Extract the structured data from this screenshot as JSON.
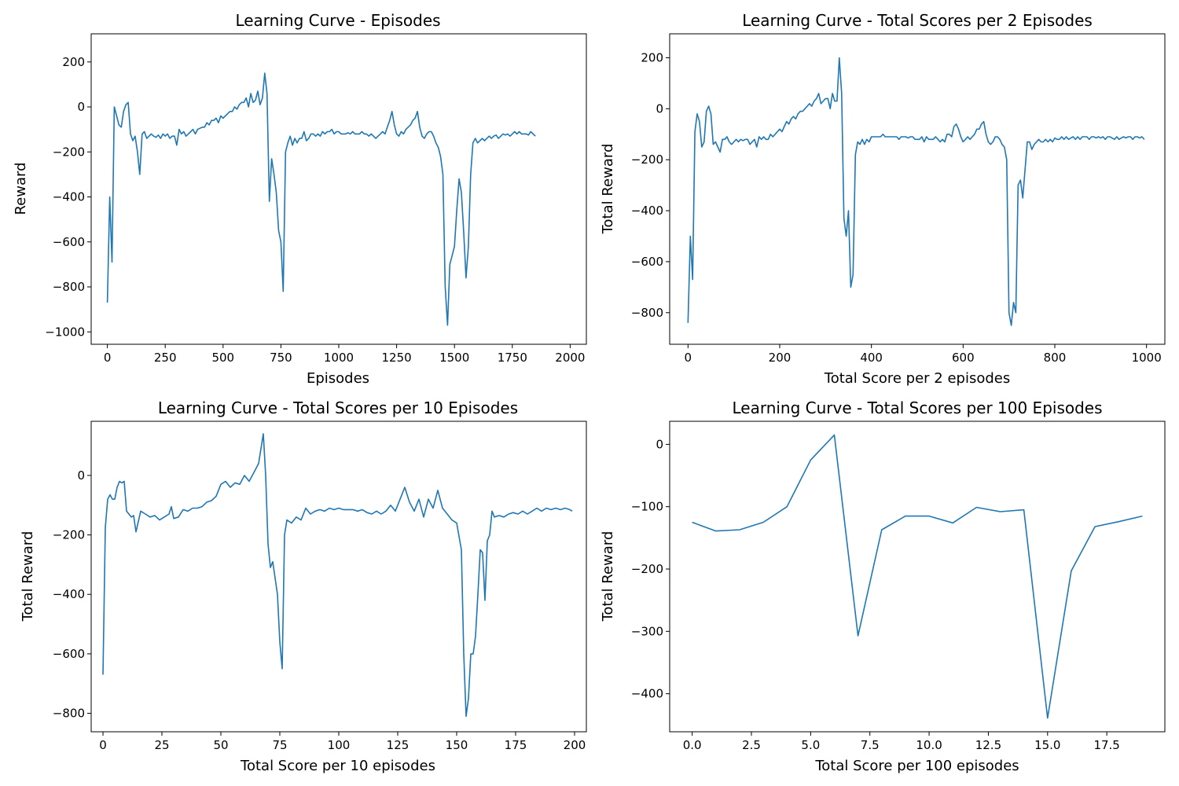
{
  "colors": {
    "series": "#1f77b4",
    "axes": "#000000",
    "background": "#ffffff"
  },
  "chart_data": [
    {
      "type": "line",
      "title": "Learning Curve - Episodes",
      "xlabel": "Episodes",
      "ylabel": "Reward",
      "xlim": [
        -70,
        2070
      ],
      "ylim": [
        -1055,
        325
      ],
      "xticks": [
        0,
        250,
        500,
        750,
        1000,
        1250,
        1500,
        1750,
        2000
      ],
      "xtick_labels": [
        "0",
        "250",
        "500",
        "750",
        "1000",
        "1250",
        "1500",
        "1750",
        "2000"
      ],
      "yticks": [
        -1000,
        -800,
        -600,
        -400,
        -200,
        0,
        200
      ],
      "ytick_labels": [
        "−1000",
        "−800",
        "−600",
        "−400",
        "−200",
        "0",
        "200"
      ],
      "grid": false,
      "legend": "none",
      "x_step": 10,
      "series": [
        {
          "values": [
            -870,
            -400,
            -690,
            0,
            -40,
            -80,
            -90,
            -20,
            10,
            20,
            -120,
            -150,
            -130,
            -200,
            -300,
            -120,
            -110,
            -140,
            -130,
            -120,
            -130,
            -135,
            -125,
            -140,
            -120,
            -130,
            -120,
            -140,
            -130,
            -130,
            -170,
            -100,
            -120,
            -110,
            -130,
            -120,
            -110,
            -100,
            -120,
            -100,
            -95,
            -90,
            -90,
            -70,
            -80,
            -60,
            -60,
            -50,
            -70,
            -40,
            -50,
            -40,
            -30,
            -20,
            -20,
            0,
            -10,
            10,
            20,
            20,
            40,
            0,
            60,
            20,
            30,
            70,
            10,
            40,
            150,
            60,
            -420,
            -230,
            -300,
            -380,
            -550,
            -600,
            -820,
            -200,
            -160,
            -130,
            -170,
            -140,
            -160,
            -140,
            -140,
            -110,
            -150,
            -140,
            -120,
            -120,
            -130,
            -120,
            -130,
            -110,
            -120,
            -110,
            -110,
            -100,
            -120,
            -110,
            -110,
            -120,
            -120,
            -120,
            -115,
            -120,
            -110,
            -120,
            -120,
            -120,
            -110,
            -120,
            -120,
            -130,
            -120,
            -130,
            -140,
            -130,
            -120,
            -110,
            -120,
            -90,
            -60,
            -20,
            -80,
            -120,
            -130,
            -110,
            -120,
            -100,
            -90,
            -80,
            -60,
            -50,
            -20,
            -90,
            -130,
            -140,
            -120,
            -110,
            -110,
            -130,
            -160,
            -180,
            -220,
            -300,
            -800,
            -970,
            -700,
            -660,
            -620,
            -460,
            -320,
            -380,
            -560,
            -760,
            -620,
            -300,
            -160,
            -140,
            -160,
            -150,
            -140,
            -150,
            -140,
            -130,
            -140,
            -130,
            -125,
            -140,
            -130,
            -120,
            -125,
            -120,
            -130,
            -120,
            -110,
            -120,
            -110,
            -120,
            -120,
            -120,
            -125,
            -110,
            -120,
            -130
          ]
        }
      ]
    },
    {
      "type": "line",
      "title": "Learning Curve - Total Scores per 2 Episodes",
      "xlabel": "Total Score per 2 episodes",
      "ylabel": "Total Reward",
      "xlim": [
        -40,
        1040
      ],
      "ylim": [
        -924,
        294
      ],
      "xticks": [
        0,
        200,
        400,
        600,
        800,
        1000
      ],
      "xtick_labels": [
        "0",
        "200",
        "400",
        "600",
        "800",
        "1000"
      ],
      "yticks": [
        -800,
        -600,
        -400,
        -200,
        0,
        200
      ],
      "ytick_labels": [
        "−800",
        "−600",
        "−400",
        "−200",
        "0",
        "200"
      ],
      "grid": false,
      "legend": "none",
      "x_step": 5,
      "series": [
        {
          "values": [
            -840,
            -500,
            -670,
            -90,
            -20,
            -50,
            -150,
            -130,
            -10,
            10,
            -20,
            -140,
            -130,
            -150,
            -170,
            -120,
            -120,
            -110,
            -130,
            -140,
            -130,
            -120,
            -130,
            -120,
            -125,
            -120,
            -120,
            -140,
            -130,
            -120,
            -150,
            -110,
            -120,
            -110,
            -120,
            -120,
            -100,
            -110,
            -100,
            -90,
            -80,
            -90,
            -70,
            -50,
            -60,
            -40,
            -30,
            -40,
            -20,
            -10,
            -10,
            0,
            10,
            20,
            10,
            30,
            40,
            60,
            20,
            30,
            40,
            40,
            0,
            60,
            30,
            30,
            200,
            60,
            -430,
            -500,
            -400,
            -700,
            -650,
            -180,
            -130,
            -140,
            -120,
            -140,
            -120,
            -130,
            -110,
            -110,
            -110,
            -110,
            -110,
            -100,
            -110,
            -110,
            -110,
            -110,
            -110,
            -110,
            -120,
            -110,
            -110,
            -110,
            -115,
            -110,
            -110,
            -120,
            -120,
            -120,
            -110,
            -130,
            -110,
            -120,
            -120,
            -120,
            -110,
            -120,
            -130,
            -120,
            -130,
            -100,
            -100,
            -110,
            -70,
            -60,
            -80,
            -110,
            -130,
            -120,
            -110,
            -120,
            -110,
            -100,
            -80,
            -80,
            -60,
            -50,
            -100,
            -130,
            -140,
            -130,
            -110,
            -110,
            -120,
            -140,
            -150,
            -200,
            -800,
            -850,
            -760,
            -800,
            -300,
            -280,
            -350,
            -240,
            -130,
            -130,
            -160,
            -140,
            -130,
            -120,
            -130,
            -130,
            -120,
            -130,
            -120,
            -130,
            -115,
            -120,
            -120,
            -110,
            -120,
            -110,
            -120,
            -115,
            -110,
            -120,
            -110,
            -120,
            -110,
            -110,
            -110,
            -120,
            -110,
            -110,
            -115,
            -110,
            -115,
            -110,
            -120,
            -110,
            -110,
            -115,
            -120,
            -110,
            -120,
            -115,
            -110,
            -115,
            -110,
            -110,
            -120,
            -110,
            -110,
            -115,
            -110,
            -120
          ]
        }
      ]
    },
    {
      "type": "line",
      "title": "Learning Curve - Total Scores per 10 Episodes",
      "xlabel": "Total Score per 10 episodes",
      "ylabel": "Total Reward",
      "xlim": [
        -5,
        205
      ],
      "ylim": [
        -862,
        182
      ],
      "xticks": [
        0,
        25,
        50,
        75,
        100,
        125,
        150,
        175,
        200
      ],
      "xtick_labels": [
        "0",
        "25",
        "50",
        "75",
        "100",
        "125",
        "150",
        "175",
        "200"
      ],
      "yticks": [
        -800,
        -600,
        -400,
        -200,
        0
      ],
      "ytick_labels": [
        "−800",
        "−600",
        "−400",
        "−200",
        "0"
      ],
      "grid": false,
      "legend": "none",
      "x": [
        0,
        1,
        2,
        3,
        4,
        5,
        6,
        7,
        8,
        9,
        10,
        12,
        13,
        14,
        16,
        18,
        20,
        22,
        24,
        26,
        28,
        29,
        30,
        32,
        34,
        36,
        38,
        40,
        42,
        44,
        46,
        48,
        50,
        52,
        54,
        56,
        58,
        60,
        62,
        64,
        66,
        68,
        69,
        70,
        71,
        72,
        74,
        75,
        76,
        77,
        78,
        80,
        82,
        84,
        86,
        88,
        90,
        92,
        94,
        96,
        98,
        100,
        102,
        104,
        106,
        108,
        110,
        112,
        114,
        116,
        118,
        120,
        122,
        124,
        126,
        128,
        130,
        132,
        134,
        136,
        138,
        140,
        142,
        144,
        146,
        148,
        150,
        152,
        153,
        154,
        155,
        156,
        157,
        158,
        159,
        160,
        161,
        162,
        163,
        164,
        165,
        166,
        168,
        170,
        172,
        174,
        176,
        178,
        180,
        182,
        184,
        186,
        188,
        190,
        192,
        194,
        196,
        198,
        199
      ],
      "y": [
        -670,
        -175,
        -80,
        -65,
        -80,
        -80,
        -40,
        -20,
        -25,
        -20,
        -120,
        -140,
        -135,
        -190,
        -120,
        -130,
        -140,
        -135,
        -150,
        -140,
        -130,
        -105,
        -145,
        -140,
        -115,
        -120,
        -110,
        -110,
        -105,
        -90,
        -85,
        -70,
        -30,
        -20,
        -40,
        -25,
        -30,
        0,
        -20,
        10,
        40,
        140,
        0,
        -230,
        -310,
        -290,
        -400,
        -560,
        -650,
        -200,
        -150,
        -160,
        -140,
        -150,
        -110,
        -130,
        -120,
        -115,
        -120,
        -110,
        -115,
        -110,
        -115,
        -115,
        -115,
        -120,
        -115,
        -125,
        -130,
        -120,
        -130,
        -120,
        -100,
        -120,
        -80,
        -40,
        -90,
        -120,
        -80,
        -140,
        -80,
        -110,
        -50,
        -110,
        -130,
        -150,
        -160,
        -250,
        -600,
        -810,
        -750,
        -600,
        -600,
        -540,
        -400,
        -250,
        -260,
        -420,
        -220,
        -200,
        -120,
        -140,
        -135,
        -140,
        -130,
        -125,
        -130,
        -120,
        -130,
        -120,
        -110,
        -120,
        -110,
        -115,
        -110,
        -115,
        -110,
        -115,
        -120
      ]
    },
    {
      "type": "line",
      "title": "Learning Curve - Total Scores per 100 Episodes",
      "xlabel": "Total Score per 100 episodes",
      "ylabel": "Total Reward",
      "xlim": [
        -0.95,
        19.95
      ],
      "ylim": [
        -461,
        37
      ],
      "xticks": [
        0,
        2.5,
        5,
        7.5,
        10,
        12.5,
        15,
        17.5
      ],
      "xtick_labels": [
        "0.0",
        "2.5",
        "5.0",
        "7.5",
        "10.0",
        "12.5",
        "15.0",
        "17.5"
      ],
      "yticks": [
        -400,
        -300,
        -200,
        -100,
        0
      ],
      "ytick_labels": [
        "−400",
        "−300",
        "−200",
        "−100",
        "0"
      ],
      "grid": false,
      "legend": "none",
      "x": [
        0,
        1,
        2,
        3,
        4,
        5,
        6,
        7,
        8,
        9,
        10,
        11,
        12,
        13,
        14,
        15,
        16,
        17,
        18,
        19
      ],
      "y": [
        -125,
        -139,
        -137,
        -125,
        -100,
        -25,
        15,
        -307,
        -137,
        -115,
        -115,
        -126,
        -101,
        -108,
        -105,
        -439,
        -203,
        -132,
        -124,
        -115
      ]
    }
  ]
}
